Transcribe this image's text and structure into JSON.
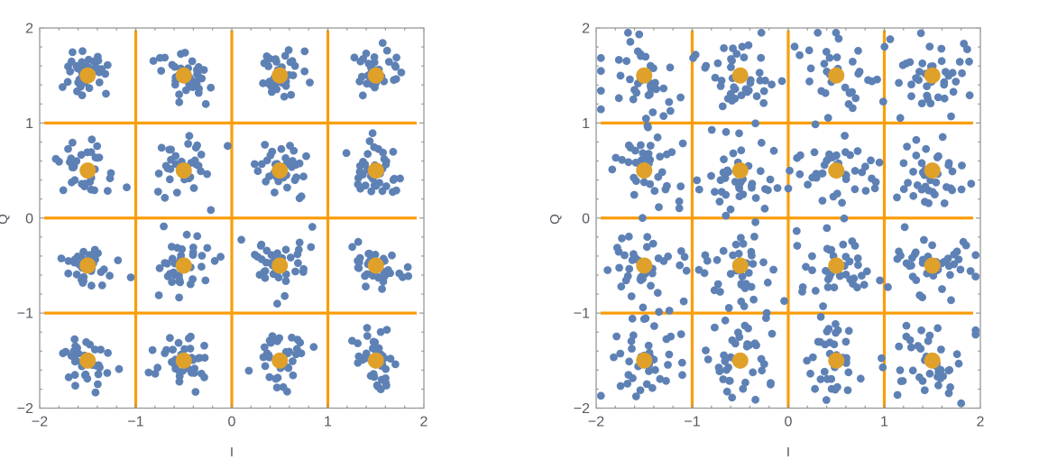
{
  "figure": {
    "background": "#FFFFFF",
    "description": "Two 16-QAM I/Q constellation scatter plots with orange decision-boundary grid lines and orange cluster-center markers"
  },
  "style": {
    "frame_color": "#989898",
    "tick_label_color": "#555A61",
    "axis_label_color": "#555A61",
    "grid_color": "#FA9E0B",
    "point_color": "#5E81B5",
    "center_color": "#DFA12A"
  },
  "chart_data": [
    {
      "type": "scatter",
      "title": "",
      "xlabel": "I",
      "ylabel": "Q",
      "xlim": [
        -2,
        2
      ],
      "ylim": [
        -2,
        2
      ],
      "x_tick_values": [
        -2,
        -1,
        0,
        1,
        2
      ],
      "x_tick_labels": [
        "−2",
        "−1",
        "0",
        "1",
        "2"
      ],
      "y_tick_values": [
        -2,
        -1,
        0,
        1,
        2
      ],
      "y_tick_labels": [
        "−2",
        "−1",
        "0",
        "1",
        "2"
      ],
      "minor_tick_step": 0.2,
      "grid_x": [
        -1,
        0,
        1
      ],
      "grid_y": [
        -1,
        0,
        1
      ],
      "cluster_centers_I": [
        -1.5,
        -0.5,
        0.5,
        1.5
      ],
      "cluster_centers_Q": [
        -1.5,
        -0.5,
        0.5,
        1.5
      ],
      "points_per_cluster": 38,
      "noise_sigma": 0.14,
      "seed": 1337,
      "marker_radius_px": 4.4,
      "center_marker_radius_px": 9,
      "grid_on": true,
      "legend": "none"
    },
    {
      "type": "scatter",
      "title": "",
      "xlabel": "I",
      "ylabel": "Q",
      "xlim": [
        -2,
        2
      ],
      "ylim": [
        -2,
        2
      ],
      "x_tick_values": [
        -2,
        -1,
        0,
        1,
        2
      ],
      "x_tick_labels": [
        "−2",
        "−1",
        "0",
        "1",
        "2"
      ],
      "y_tick_values": [
        -2,
        -1,
        0,
        1,
        2
      ],
      "y_tick_labels": [
        "−2",
        "−1",
        "0",
        "1",
        "2"
      ],
      "minor_tick_step": 0.2,
      "grid_x": [
        -1,
        0,
        1
      ],
      "grid_y": [
        -1,
        0,
        1
      ],
      "cluster_centers_I": [
        -1.5,
        -0.5,
        0.5,
        1.5
      ],
      "cluster_centers_Q": [
        -1.5,
        -0.5,
        0.5,
        1.5
      ],
      "points_per_cluster": 42,
      "noise_sigma": 0.215,
      "seed": 90210,
      "marker_radius_px": 4.4,
      "center_marker_radius_px": 9,
      "grid_on": true,
      "legend": "none"
    }
  ]
}
